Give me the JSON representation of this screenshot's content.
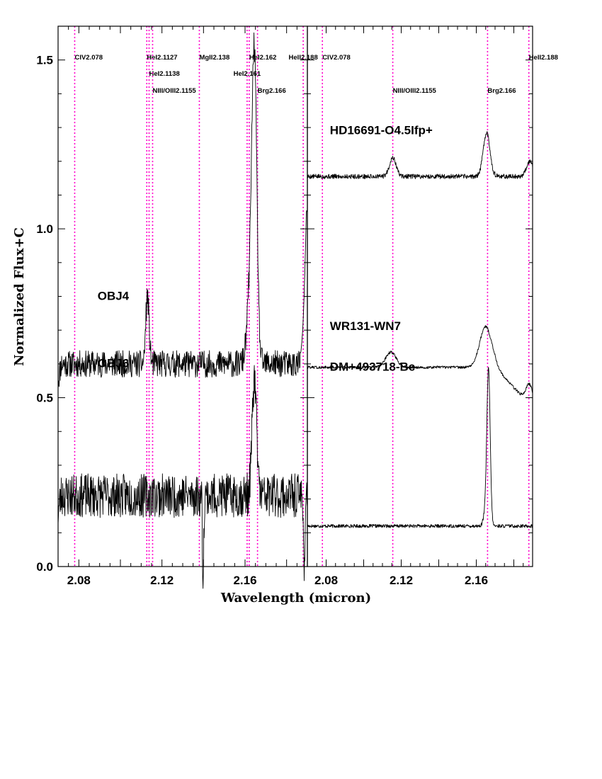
{
  "chart_data": {
    "type": "line",
    "title": "",
    "xlabel": "Wavelength (micron)",
    "ylabel": "Normalized Flux+C",
    "xlim": [
      2.07,
      2.19
    ],
    "ylim": [
      0.0,
      1.6
    ],
    "yticks": [
      {
        "value": 0.0,
        "label": "0.0"
      },
      {
        "value": 0.5,
        "label": "0.5"
      },
      {
        "value": 1.0,
        "label": "1.0"
      },
      {
        "value": 1.5,
        "label": "1.5"
      }
    ],
    "xticks": [
      {
        "value": 2.08,
        "label": "2.08"
      },
      {
        "value": 2.12,
        "label": "2.12"
      },
      {
        "value": 2.16,
        "label": "2.16"
      }
    ],
    "panels": [
      {
        "name": "left",
        "line_markers": [
          {
            "wavelength": 2.078,
            "label": "CIV2.078",
            "row": 0,
            "anchor": "start"
          },
          {
            "wavelength": 2.1127,
            "label": "HeI2.1127",
            "row": 0,
            "anchor": "start"
          },
          {
            "wavelength": 2.1138,
            "label": "HeI2.1138",
            "row": 1,
            "anchor": "start"
          },
          {
            "wavelength": 2.1155,
            "label": "NIII/OIII2.1155",
            "row": 2,
            "anchor": "start"
          },
          {
            "wavelength": 2.138,
            "label": "MgII2.138",
            "row": 0,
            "anchor": "start"
          },
          {
            "wavelength": 2.161,
            "label": "HeI2.161",
            "row": 1,
            "anchor": "middle"
          },
          {
            "wavelength": 2.162,
            "label": "HeI2.162",
            "row": 0,
            "anchor": "start"
          },
          {
            "wavelength": 2.166,
            "label": "Brg2.166",
            "row": 2,
            "anchor": "start"
          },
          {
            "wavelength": 2.188,
            "label": "HeII2.188",
            "row": 0,
            "anchor": "middle"
          }
        ],
        "series": [
          {
            "name": "OBJ4",
            "label_pos": [
              2.089,
              0.79
            ],
            "shape": {
              "continuum": 0.6,
              "noise": 0.04,
              "seed": 11,
              "features": [
                {
                  "type": "gauss",
                  "center": 2.113,
                  "amp": 0.2,
                  "sigma": 0.0008
                },
                {
                  "type": "gauss",
                  "center": 2.1645,
                  "amp": 0.86,
                  "sigma": 0.0012
                },
                {
                  "type": "gauss",
                  "center": 2.1625,
                  "amp": 0.2,
                  "sigma": 0.0015
                },
                {
                  "type": "edge",
                  "start": 2.1865,
                  "end": 2.1895,
                  "from": 0.63,
                  "to": 1.05
                }
              ]
            }
          },
          {
            "name": "OBJ6",
            "label_pos": [
              2.089,
              0.59
            ],
            "shape": {
              "continuum": 0.21,
              "noise": 0.065,
              "seed": 23,
              "features": [
                {
                  "type": "gauss",
                  "center": 2.1645,
                  "amp": 0.34,
                  "sigma": 0.0011
                },
                {
                  "type": "dip",
                  "center": 2.1398,
                  "depth": 0.24,
                  "sigma": 0.0003
                },
                {
                  "type": "dip",
                  "center": 2.1885,
                  "depth": 0.24,
                  "sigma": 0.0003
                }
              ]
            }
          }
        ]
      },
      {
        "name": "right",
        "line_markers": [
          {
            "wavelength": 2.078,
            "label": "CIV2.078",
            "row": 0,
            "anchor": "start"
          },
          {
            "wavelength": 2.1155,
            "label": "NIII/OIII2.1155",
            "row": 2,
            "anchor": "start"
          },
          {
            "wavelength": 2.166,
            "label": "Brg2.166",
            "row": 2,
            "anchor": "start"
          },
          {
            "wavelength": 2.188,
            "label": "HeII2.188",
            "row": 0,
            "anchor": "start"
          }
        ],
        "series": [
          {
            "name": "HD16691-O4.5Ifp+",
            "label_pos": [
              2.082,
              1.28
            ],
            "shape": {
              "continuum": 1.155,
              "noise": 0.007,
              "seed": 5,
              "features": [
                {
                  "type": "gauss",
                  "center": 2.1155,
                  "amp": 0.055,
                  "sigma": 0.0018
                },
                {
                  "type": "gauss",
                  "center": 2.1655,
                  "amp": 0.13,
                  "sigma": 0.0018
                },
                {
                  "type": "gauss",
                  "center": 2.1885,
                  "amp": 0.045,
                  "sigma": 0.0018
                }
              ]
            }
          },
          {
            "name": "WR131-WN7",
            "label_pos": [
              2.082,
              0.7
            ],
            "shape": {
              "continuum": 0.59,
              "noise": 0.004,
              "seed": 8,
              "slope": -0.12,
              "features": [
                {
                  "type": "gauss",
                  "center": 2.1145,
                  "amp": 0.045,
                  "sigma": 0.0028
                },
                {
                  "type": "gauss",
                  "center": 2.165,
                  "amp": 0.12,
                  "sigma": 0.0032
                },
                {
                  "type": "gauss",
                  "center": 2.1885,
                  "amp": 0.06,
                  "sigma": 0.002
                }
              ]
            }
          },
          {
            "name": "DM+493718-Be",
            "label_pos": [
              2.082,
              0.58
            ],
            "shape": {
              "continuum": 0.12,
              "noise": 0.005,
              "seed": 17,
              "features": [
                {
                  "type": "gauss",
                  "center": 2.1665,
                  "amp": 0.465,
                  "sigma": 0.0009
                },
                {
                  "type": "gauss",
                  "center": 2.1645,
                  "amp": 0.03,
                  "sigma": 0.0009
                }
              ]
            }
          }
        ]
      }
    ]
  }
}
